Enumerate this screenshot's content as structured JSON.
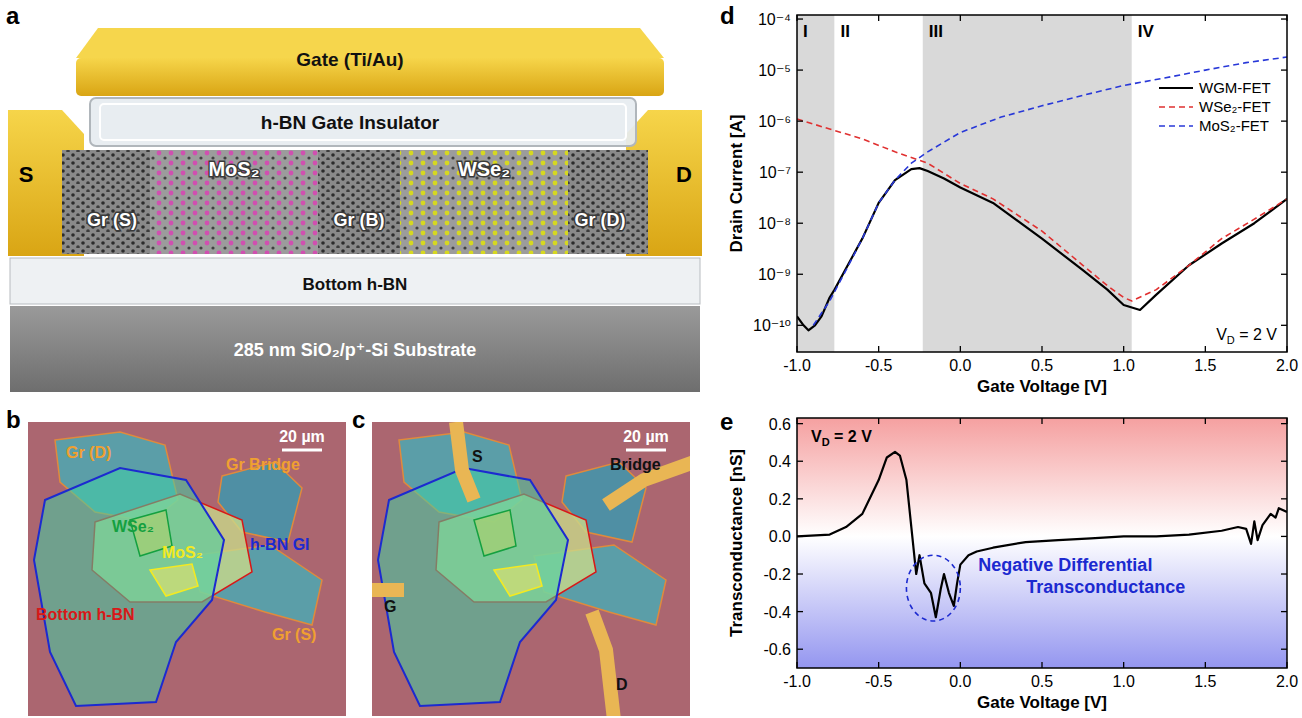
{
  "chart_data": [
    {
      "type": "line",
      "x_label": "Gate Voltage [V]",
      "y_label": "Drain Current [A]",
      "log": "y",
      "xlim": [
        -1.0,
        2.0
      ],
      "ylim": [
        3e-11,
        0.00012
      ],
      "xticks": [
        {
          "value": -1,
          "label": "-1.0"
        },
        -0.5,
        {
          "value": 0,
          "label": "0.0"
        },
        0.5,
        {
          "value": 1,
          "label": "1.0"
        },
        1.5,
        {
          "value": 2,
          "label": "2.0"
        }
      ],
      "yticks": [
        {
          "value": 1e-10,
          "label": "10⁻¹⁰"
        },
        {
          "value": 1e-09,
          "label": "10⁻⁹"
        },
        {
          "value": 1e-08,
          "label": "10⁻⁸"
        },
        {
          "value": 1e-07,
          "label": "10⁻⁷"
        },
        {
          "value": 1e-06,
          "label": "10⁻⁶"
        },
        {
          "value": 1e-05,
          "label": "10⁻⁵"
        },
        {
          "value": 0.0001,
          "label": "10⁻⁴"
        }
      ],
      "legend": "right",
      "regions": [
        {
          "label": "I",
          "range": [
            -1.0,
            -0.77
          ]
        },
        {
          "label": "II",
          "range": [
            -0.77,
            -0.23
          ]
        },
        {
          "label": "III",
          "range": [
            -0.23,
            1.05
          ]
        },
        {
          "label": "IV",
          "range": [
            1.05,
            2.0
          ]
        }
      ],
      "annotation": {
        "parts": [
          "V",
          "D",
          " = 2 V"
        ]
      },
      "series": [
        {
          "name": "WGM-FET",
          "color": "#000000",
          "line_style": "solid",
          "x": [
            -1.0,
            -0.96,
            -0.93,
            -0.89,
            -0.85,
            -0.8,
            -0.77,
            -0.7,
            -0.6,
            -0.5,
            -0.4,
            -0.3,
            -0.25,
            -0.2,
            -0.1,
            0.0,
            0.2,
            0.5,
            0.75,
            0.9,
            1.0,
            1.1,
            1.2,
            1.4,
            1.6,
            1.8,
            2.0
          ],
          "values": [
            1.5e-10,
            1e-10,
            8e-11,
            1e-10,
            1.5e-10,
            3.5e-10,
            5e-10,
            1.3e-09,
            5e-09,
            2.5e-08,
            7e-08,
            1.15e-07,
            1.2e-07,
            1.05e-07,
            7.5e-08,
            5e-08,
            2.5e-08,
            5e-09,
            1.2e-09,
            5e-10,
            2.5e-10,
            2e-10,
            4e-10,
            1.5e-09,
            4e-09,
            1e-08,
            3e-08
          ]
        },
        {
          "name": "WSe₂-FET",
          "color": "#e03030",
          "line_style": "dashed",
          "x": [
            -1.0,
            -0.8,
            -0.6,
            -0.4,
            -0.2,
            0.0,
            0.2,
            0.5,
            0.75,
            0.9,
            1.0,
            1.05,
            1.2,
            1.4,
            1.6,
            1.8,
            2.0
          ],
          "values": [
            1.1e-06,
            7e-07,
            4.5e-07,
            2.5e-07,
            1.5e-07,
            6e-08,
            3e-08,
            7e-09,
            1.5e-09,
            6e-10,
            3.5e-10,
            3e-10,
            5e-10,
            1.5e-09,
            5e-09,
            1.2e-08,
            3e-08
          ]
        },
        {
          "name": "MoS₂-FET",
          "color": "#2838d8",
          "line_style": "dashed",
          "x": [
            -0.9,
            -0.8,
            -0.7,
            -0.6,
            -0.5,
            -0.4,
            -0.3,
            -0.2,
            0.0,
            0.25,
            0.5,
            0.75,
            1.0,
            1.25,
            1.5,
            1.75,
            2.0
          ],
          "values": [
            1e-10,
            3e-10,
            1.2e-09,
            5e-09,
            2.5e-08,
            7e-08,
            1.5e-07,
            2.5e-07,
            6e-07,
            1.2e-06,
            2e-06,
            3.2e-06,
            5e-06,
            7e-06,
            1e-05,
            1.4e-05,
            1.8e-05
          ]
        }
      ]
    },
    {
      "type": "line",
      "x_label": "Gate Voltage [V]",
      "y_label": "Transconductance [nS]",
      "xlim": [
        -1.0,
        2.0
      ],
      "ylim": [
        -0.7,
        0.63
      ],
      "xticks": [
        {
          "value": -1,
          "label": "-1.0"
        },
        -0.5,
        {
          "value": 0,
          "label": "0.0"
        },
        0.5,
        {
          "value": 1,
          "label": "1.0"
        },
        1.5,
        {
          "value": 2,
          "label": "2.0"
        }
      ],
      "yticks": [
        -0.6,
        -0.4,
        -0.2,
        {
          "value": 0,
          "label": "0.0"
        },
        0.2,
        0.4,
        0.6
      ],
      "annotation": {
        "parts": [
          "V",
          "D",
          " = 2 V"
        ]
      },
      "highlight": {
        "text": "Negative Differential Transconductance",
        "x": [
          -0.33,
          0.0
        ],
        "y": [
          -0.45,
          -0.1
        ]
      },
      "series": [
        {
          "name": "Transconductance",
          "color": "#000000",
          "line_style": "solid",
          "x": [
            -1.0,
            -0.8,
            -0.7,
            -0.6,
            -0.5,
            -0.45,
            -0.4,
            -0.37,
            -0.33,
            -0.3,
            -0.27,
            -0.25,
            -0.22,
            -0.18,
            -0.15,
            -0.12,
            -0.1,
            -0.07,
            -0.04,
            -0.02,
            0.0,
            0.05,
            0.1,
            0.2,
            0.4,
            0.6,
            0.8,
            1.0,
            1.2,
            1.4,
            1.6,
            1.7,
            1.75,
            1.78,
            1.8,
            1.82,
            1.85,
            1.9,
            1.93,
            1.95,
            2.0
          ],
          "values": [
            0.0,
            0.01,
            0.05,
            0.12,
            0.3,
            0.42,
            0.45,
            0.43,
            0.3,
            0.05,
            -0.2,
            -0.1,
            -0.25,
            -0.3,
            -0.43,
            -0.28,
            -0.2,
            -0.3,
            -0.37,
            -0.25,
            -0.15,
            -0.1,
            -0.08,
            -0.06,
            -0.03,
            -0.02,
            -0.01,
            0.0,
            0.0,
            0.01,
            0.03,
            0.05,
            0.04,
            -0.04,
            0.08,
            -0.02,
            0.06,
            0.12,
            0.1,
            0.15,
            0.13
          ]
        }
      ]
    }
  ],
  "panel_letters": [
    "a",
    "b",
    "c",
    "d",
    "e"
  ],
  "device": {
    "gate": "Gate (Ti/Au)",
    "gate_insulator": "h-BN Gate Insulator",
    "source": "S",
    "drain": "D",
    "channel_left": "MoS₂",
    "channel_right": "WSe₂",
    "graphene": [
      "Gr (S)",
      "Gr (B)",
      "Gr (D)"
    ],
    "bottom": "Bottom h-BN",
    "substrate": "285 nm SiO₂/p⁺-Si Substrate"
  },
  "micrograph_b": {
    "scale_bar": "20 µm",
    "labels": [
      {
        "text": "Gr (D)",
        "color": "#f0a030"
      },
      {
        "text": "WSe₂",
        "color": "#14a040"
      },
      {
        "text": "Gr Bridge",
        "color": "#f0a030"
      },
      {
        "text": "h-BN GI",
        "color": "#1c2ad0"
      },
      {
        "text": "Bottom h-BN",
        "color": "#d81818"
      },
      {
        "text": "MoS₂",
        "color": "#f4ea20"
      },
      {
        "text": "Gr (S)",
        "color": "#f0a030"
      }
    ]
  },
  "micrograph_c": {
    "scale_bar": "20 µm",
    "labels": [
      {
        "text": "S",
        "color": "#111111"
      },
      {
        "text": "Bridge",
        "color": "#111111"
      },
      {
        "text": "G",
        "color": "#111111"
      },
      {
        "text": "D",
        "color": "#111111"
      }
    ]
  }
}
